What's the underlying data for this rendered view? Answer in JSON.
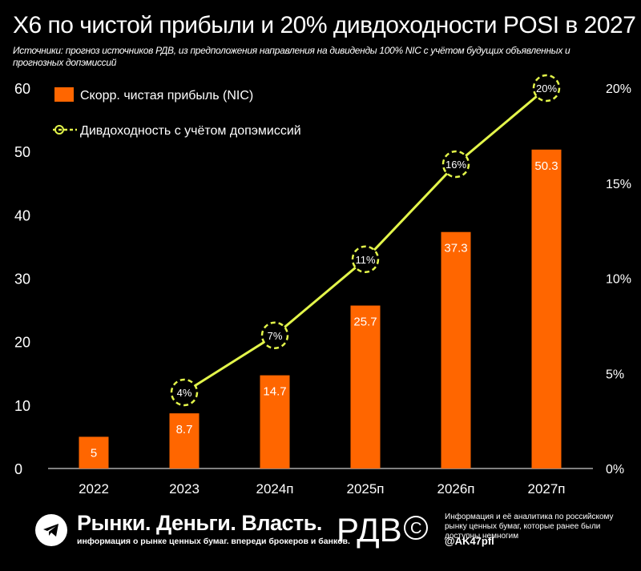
{
  "header": {
    "title": "X6 по чистой прибыли и 20% дивдоходности POSI в 2027",
    "subtitle": "Источники: прогноз источников РДВ, из предположения направления на дивиденды 100% NIC с учётом будущих объявленных и прогнозных допэмиссий"
  },
  "chart_data": {
    "type": "bar+line",
    "categories": [
      "2022",
      "2023",
      "2024п",
      "2025п",
      "2026п",
      "2027п"
    ],
    "series": [
      {
        "name": "Скорр. чистая прибыль (NIC)",
        "type": "bar",
        "axis": "left",
        "values": [
          5,
          8.7,
          14.7,
          25.7,
          37.3,
          50.3
        ],
        "labels": [
          "5",
          "8.7",
          "14.7",
          "25.7",
          "37.3",
          "50.3"
        ],
        "color": "#FF6600"
      },
      {
        "name": "Дивдоходность с учётом допэмиссий",
        "type": "line",
        "axis": "right",
        "values": [
          null,
          4,
          7,
          11,
          16,
          20
        ],
        "labels": [
          "",
          "4%",
          "7%",
          "11%",
          "16%",
          "20%"
        ],
        "color": "#E3F54A"
      }
    ],
    "y_left": {
      "min": 0,
      "max": 60,
      "ticks": [
        "0",
        "10",
        "20",
        "30",
        "40",
        "50",
        "60"
      ]
    },
    "y_right": {
      "min": 0,
      "max": 20,
      "ticks": [
        "0%",
        "5%",
        "10%",
        "15%",
        "20%"
      ]
    },
    "legend_position": "top-left"
  },
  "footer": {
    "brand": "Рынки. Деньги. Власть.",
    "brand_sub": "информация о рынке ценных бумаг. впереди брокеров и банков.",
    "logo_text": "РДВ",
    "info_text": "Информация и её аналитика по российскому рынку ценных бумаг, которые ранее были доступны немногим",
    "handle": "@AK47pfl"
  },
  "colors": {
    "background": "#000000",
    "bar": "#FF6600",
    "line": "#E3F54A",
    "text": "#FFFFFF"
  }
}
